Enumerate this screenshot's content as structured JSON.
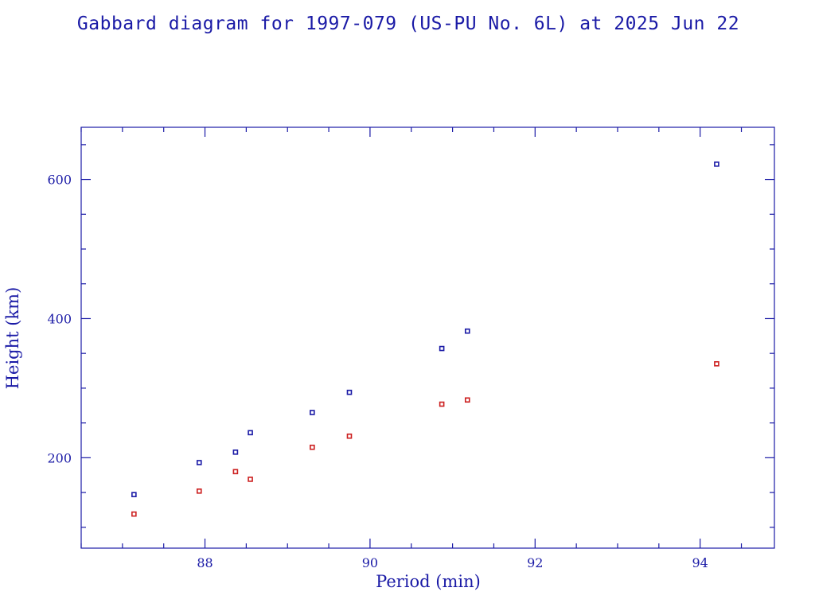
{
  "colors": {
    "axis": "#1a1aa6",
    "apogee": "#1a1aa6",
    "perigee": "#cc1f1f"
  },
  "chart_data": {
    "type": "scatter",
    "title": "Gabbard diagram for 1997-079 (US-PU No. 6L) at 2025 Jun 22",
    "xlabel": "Period (min)",
    "ylabel": "Height (km)",
    "xlim": [
      86.5,
      94.9
    ],
    "ylim": [
      70,
      675
    ],
    "x_ticks": [
      88,
      90,
      92,
      94
    ],
    "x_tick_labels": [
      "88",
      "90",
      "92",
      "94"
    ],
    "x_minor_step": 0.5,
    "y_ticks": [
      200,
      400,
      600
    ],
    "y_tick_labels": [
      "200",
      "400",
      "600"
    ],
    "y_minor_step": 50,
    "grid": false,
    "legend": "none",
    "series": [
      {
        "key": "apogee",
        "color": "#1a1aa6",
        "x": [
          87.14,
          87.93,
          88.37,
          88.55,
          89.3,
          89.75,
          90.87,
          91.18,
          94.2
        ],
        "y": [
          147,
          193,
          208,
          236,
          265,
          294,
          357,
          382,
          622
        ]
      },
      {
        "key": "perigee",
        "color": "#cc1f1f",
        "x": [
          87.14,
          87.93,
          88.37,
          88.55,
          89.3,
          89.75,
          90.87,
          91.18,
          94.2
        ],
        "y": [
          119,
          152,
          180,
          169,
          215,
          231,
          277,
          283,
          335
        ]
      }
    ]
  }
}
